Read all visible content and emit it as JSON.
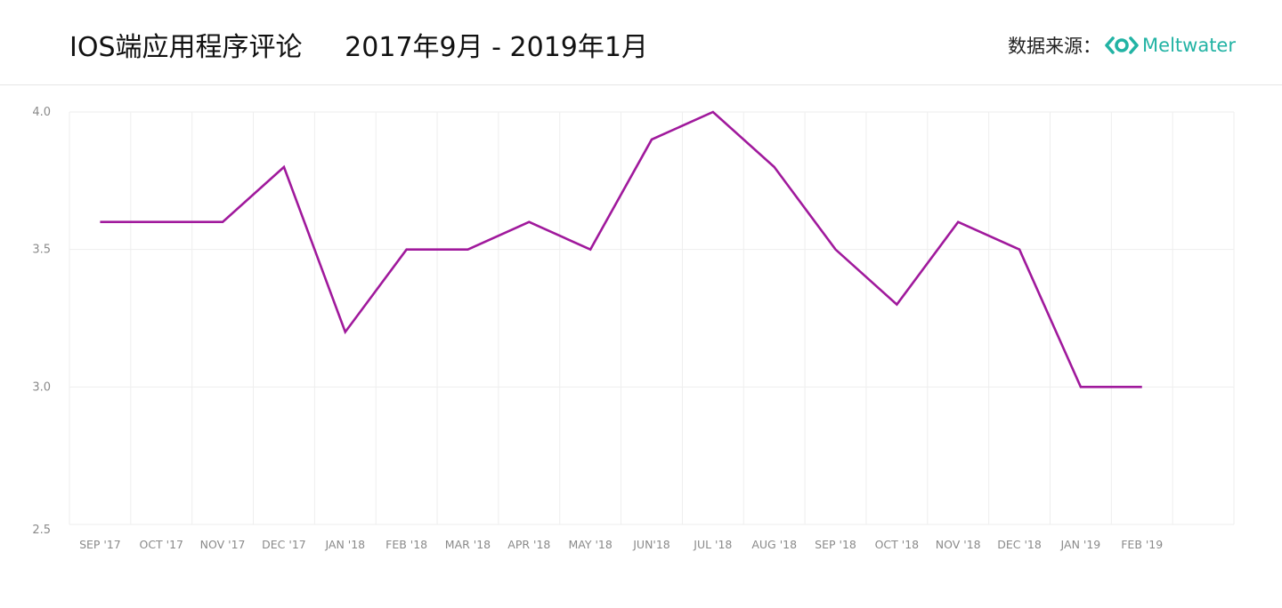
{
  "header": {
    "title": "IOS端应用程序评论     2017年9月 - 2019年1月",
    "source_label": "数据来源：",
    "brand": "Meltwater"
  },
  "colors": {
    "line": "#a0199c",
    "grid": "#eeeeee",
    "brand": "#22b3a4"
  },
  "chart_data": {
    "type": "line",
    "categories": [
      "SEP '17",
      "OCT '17",
      "NOV '17",
      "DEC '17",
      "JAN '18",
      "FEB '18",
      "MAR '18",
      "APR '18",
      "MAY '18",
      "JUN'18",
      "JUL '18",
      "AUG '18",
      "SEP '18",
      "OCT '18",
      "NOV '18",
      "DEC '18",
      "JAN '19",
      "FEB '19"
    ],
    "series": [
      {
        "values": [
          3.6,
          3.6,
          3.6,
          3.8,
          3.2,
          3.5,
          3.5,
          3.6,
          3.5,
          3.9,
          4.0,
          3.8,
          3.5,
          3.3,
          3.6,
          3.5,
          3.0,
          3.0
        ]
      }
    ],
    "yticks": [
      "2.5",
      "3.0",
      "3.5",
      "4.0"
    ],
    "ylim": [
      2.5,
      4.0
    ],
    "grid": true,
    "legend": "none"
  }
}
